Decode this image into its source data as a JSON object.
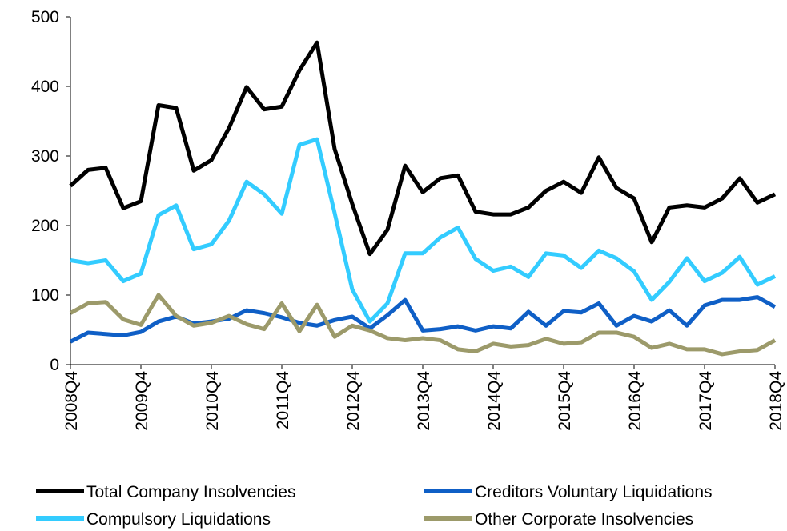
{
  "chart_data": {
    "type": "line",
    "categories": [
      "2008Q4",
      null,
      null,
      null,
      "2009Q4",
      null,
      null,
      null,
      "2010Q4",
      null,
      null,
      null,
      "2011Q4",
      null,
      null,
      null,
      "2012Q4",
      null,
      null,
      null,
      "2013Q4",
      null,
      null,
      null,
      "2014Q4",
      null,
      null,
      null,
      "2015Q4",
      null,
      null,
      null,
      "2016Q4",
      null,
      null,
      null,
      "2017Q4",
      null,
      null,
      null,
      "2018Q4"
    ],
    "series": [
      {
        "name": "Total Company Insolvencies",
        "color": "#000000",
        "values": [
          257,
          280,
          283,
          225,
          235,
          373,
          369,
          279,
          294,
          340,
          399,
          367,
          371,
          423,
          463,
          310,
          231,
          159,
          194,
          286,
          248,
          268,
          272,
          220,
          216,
          216,
          226,
          250,
          263,
          247,
          298,
          254,
          239,
          176,
          226,
          229,
          226,
          239,
          268,
          233,
          245
        ]
      },
      {
        "name": "Creditors Voluntary Liquidations",
        "color": "#0f5fc6",
        "values": [
          33,
          46,
          44,
          42,
          47,
          62,
          69,
          59,
          62,
          66,
          78,
          74,
          68,
          60,
          56,
          64,
          69,
          52,
          71,
          93,
          49,
          51,
          55,
          49,
          55,
          52,
          76,
          56,
          77,
          75,
          88,
          56,
          70,
          62,
          78,
          56,
          85,
          93,
          93,
          97,
          83
        ]
      },
      {
        "name": "Compulsory Liquidations",
        "color": "#33ccff",
        "values": [
          150,
          146,
          150,
          120,
          131,
          215,
          229,
          166,
          173,
          207,
          263,
          245,
          217,
          316,
          324,
          218,
          108,
          62,
          88,
          160,
          160,
          183,
          197,
          152,
          135,
          141,
          126,
          160,
          157,
          139,
          164,
          153,
          134,
          93,
          119,
          153,
          120,
          132,
          155,
          115,
          127
        ]
      },
      {
        "name": "Other Corporate Insolvencies",
        "color": "#9c9a6a",
        "values": [
          74,
          88,
          90,
          65,
          57,
          100,
          70,
          56,
          60,
          70,
          58,
          51,
          88,
          48,
          86,
          40,
          56,
          49,
          38,
          35,
          38,
          35,
          22,
          19,
          30,
          26,
          28,
          37,
          30,
          32,
          46,
          46,
          40,
          24,
          30,
          22,
          22,
          15,
          19,
          21,
          35
        ]
      }
    ],
    "ylim": [
      0,
      500
    ],
    "yticks": [
      0,
      100,
      200,
      300,
      400,
      500
    ],
    "grid": false
  }
}
